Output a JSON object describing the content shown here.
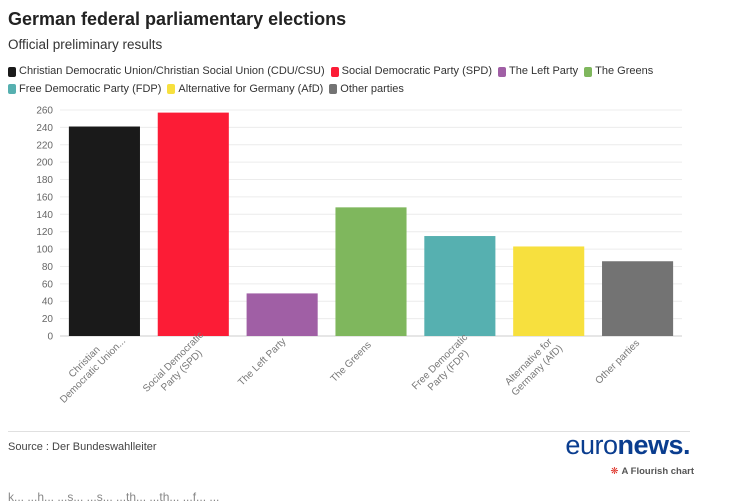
{
  "title": "German federal parliamentary elections",
  "subtitle": "Official preliminary results",
  "source": "Source : Der Bundeswahlleiter",
  "logo": {
    "light": "euro",
    "bold": "news."
  },
  "flourish": {
    "icon": "❋",
    "label": "A Flourish chart"
  },
  "bottom_text": "k... ...h... ...s... ...s... ...th... ...th... ...f... ...",
  "chart_data": {
    "type": "bar",
    "title": "German federal parliamentary elections",
    "xlabel": "",
    "ylabel": "",
    "ylim": [
      0,
      260
    ],
    "ytick_step": 20,
    "grid": true,
    "legend_position": "top",
    "categories": [
      "Christian Democratic Union/Christian Social Union (CDU/CSU)",
      "Social Democratic Party (SPD)",
      "The Left Party",
      "The Greens",
      "Free Democratic Party (FDP)",
      "Alternative for Germany (AfD)",
      "Other parties"
    ],
    "axis_labels": [
      [
        "Christian",
        "Democratic Union..."
      ],
      [
        "Social Democratic",
        "Party (SPD)"
      ],
      [
        "The Left Party"
      ],
      [
        "The Greens"
      ],
      [
        "Free Democratic",
        "Party (FDP)"
      ],
      [
        "Alternative for",
        "Germany (AfD)"
      ],
      [
        "Other parties"
      ]
    ],
    "values": [
      241,
      257,
      49,
      148,
      115,
      103,
      86
    ],
    "colors": [
      "#1a1a1a",
      "#fc1c36",
      "#a05fa5",
      "#7fb75d",
      "#56b0b0",
      "#f7e03e",
      "#737373"
    ]
  }
}
